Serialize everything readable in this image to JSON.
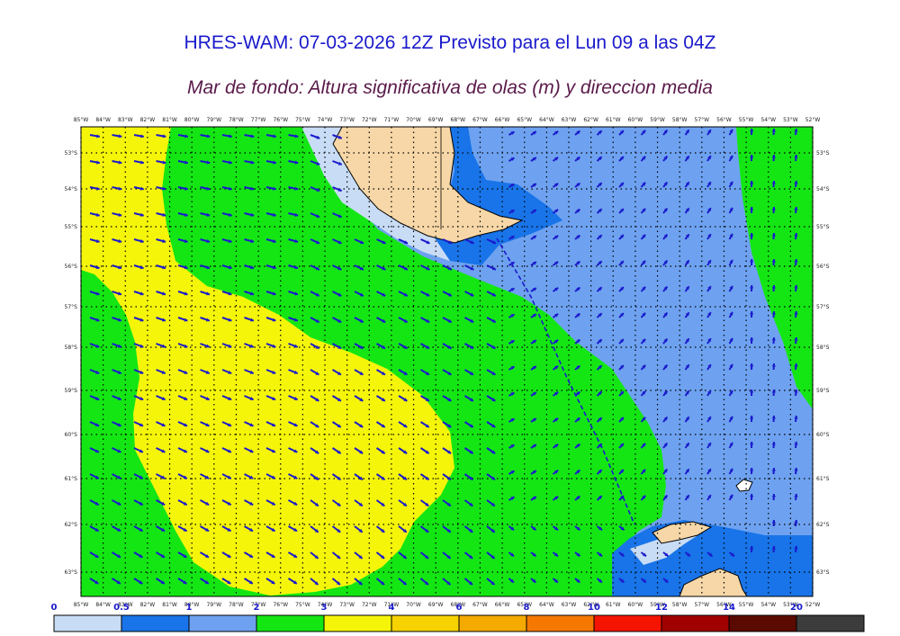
{
  "title": "HRES-WAM: 07-03-2026 12Z Previsto para el Lun 09 a las 04Z",
  "subtitle": "Mar de fondo: Altura significativa de olas (m) y direccion media",
  "lon_labels": [
    "85°W",
    "84°W",
    "83°W",
    "82°W",
    "81°W",
    "80°W",
    "79°W",
    "78°W",
    "77°W",
    "76°W",
    "75°W",
    "74°W",
    "73°W",
    "72°W",
    "71°W",
    "70°W",
    "69°W",
    "68°W",
    "67°W",
    "66°W",
    "65°W",
    "64°W",
    "63°W",
    "62°W",
    "61°W",
    "60°W",
    "59°W",
    "58°W",
    "57°W",
    "56°W",
    "55°W",
    "54°W",
    "53°W",
    "52°W"
  ],
  "lat_labels": [
    "53°S",
    "54°S",
    "55°S",
    "56°S",
    "57°S",
    "58°S",
    "59°S",
    "60°S",
    "61°S",
    "62°S",
    "63°S"
  ],
  "colorbar": {
    "ticks": [
      "0",
      "0.5",
      "1",
      "2",
      "3",
      "4",
      "6",
      "8",
      "10",
      "12",
      "14",
      "20"
    ],
    "colors": [
      "#c8dcf5",
      "#1874e8",
      "#6ea2f0",
      "#14e614",
      "#f5f50a",
      "#f5d200",
      "#f5aa00",
      "#f57800",
      "#f51400",
      "#a00000",
      "#5a0a00",
      "#3c3c3c"
    ]
  },
  "legend_colors": {
    "land": "#f7d7a7",
    "ice": "#ffffff",
    "arrow": "#1a1acc",
    "grid": "#000000"
  }
}
